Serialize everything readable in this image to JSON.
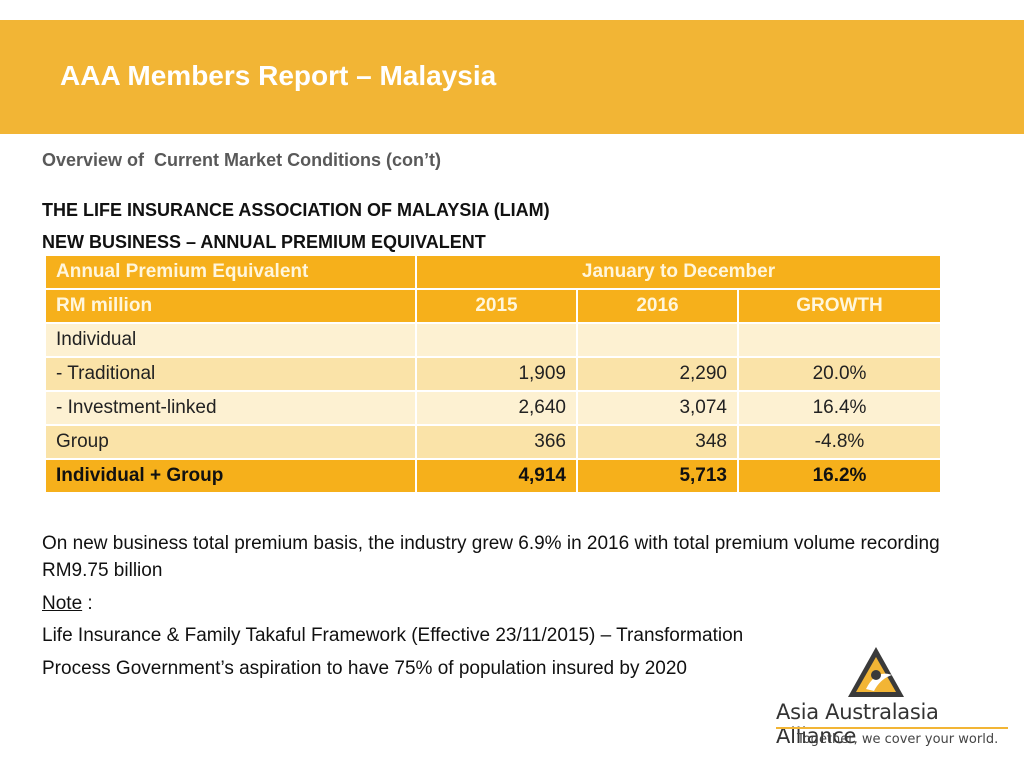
{
  "header": {
    "title": "AAA Members Report – Malaysia"
  },
  "subtitle": "Overview of  Current Market Conditions (con’t)",
  "headings": [
    "THE LIFE INSURANCE ASSOCIATION OF MALAYSIA (LIAM)",
    "NEW BUSINESS – ANNUAL PREMIUM EQUIVALENT"
  ],
  "table": {
    "top_left": "Annual Premium Equivalent",
    "period": "January to December",
    "unit": "RM million",
    "columns": [
      "2015",
      "2016",
      "GROWTH"
    ],
    "rows": [
      {
        "label": "Individual",
        "values": [
          "",
          "",
          ""
        ]
      },
      {
        "label": "- Traditional",
        "values": [
          "1,909",
          "2,290",
          "20.0%"
        ]
      },
      {
        "label": "- Investment-linked",
        "values": [
          "2,640",
          "3,074",
          "16.4%"
        ]
      },
      {
        "label": "Group",
        "values": [
          "366",
          "348",
          "-4.8%"
        ]
      },
      {
        "label": "Individual + Group",
        "values": [
          "4,914",
          "5,713",
          "16.2%"
        ]
      }
    ]
  },
  "body": {
    "paragraph": "On new business total premium basis, the industry grew 6.9% in 2016 with total premium volume recording RM9.75 billion",
    "note_label": "Note",
    "note_suffix": " :",
    "line1": "Life Insurance & Family Takaful Framework (Effective 23/11/2015) – Transformation",
    "line2": "Process Government’s aspiration to have 75% of population insured by 2020"
  },
  "logo": {
    "name": "Asia Australasia Alliance",
    "tagline": "Together, we cover your world."
  },
  "colors": {
    "banner": "#f2b535",
    "table_header": "#f6b01b",
    "row_light": "#fdf1d2",
    "row_dark": "#fae3a8"
  }
}
